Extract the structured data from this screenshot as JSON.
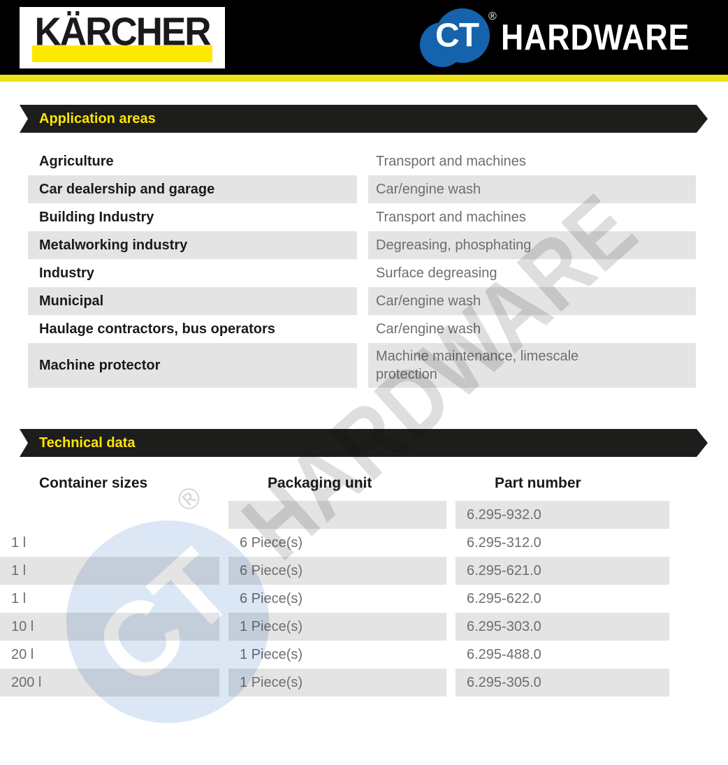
{
  "header": {
    "karcher_logo_text": "KÄRCHER",
    "ct_logo_text": "CT",
    "registered_mark": "®",
    "hardware_text": "HARDWARE"
  },
  "colors": {
    "karcher_yellow": "#ffe800",
    "accent_stripe_yellow": "#ede31a",
    "ribbon_background": "#1d1d1b",
    "ribbon_title_yellow": "#ffe500",
    "ct_blue": "#1463ac",
    "row_gray": "#e4e4e4",
    "secondary_text_gray": "#6e6e6e",
    "primary_text": "#1a1a1a",
    "header_black": "#000000"
  },
  "application_areas": {
    "title": "Application areas",
    "rows": [
      {
        "area": "Agriculture",
        "use": "Transport and machines"
      },
      {
        "area": "Car dealership and garage",
        "use": "Car/engine wash"
      },
      {
        "area": "Building Industry",
        "use": "Transport and machines"
      },
      {
        "area": "Metalworking industry",
        "use": "Degreasing, phosphating"
      },
      {
        "area": "Industry",
        "use": "Surface degreasing"
      },
      {
        "area": "Municipal",
        "use": "Car/engine wash"
      },
      {
        "area": "Haulage contractors, bus operators",
        "use": "Car/engine wash"
      },
      {
        "area": "Machine protector",
        "use": "Machine maintenance, limescale\nprotection"
      }
    ]
  },
  "technical_data": {
    "title": "Technical data",
    "columns": [
      "Container sizes",
      "Packaging unit",
      "Part number"
    ],
    "rows": [
      {
        "container_size": "",
        "packaging_unit": "",
        "part_number": "6.295-932.0"
      },
      {
        "container_size": "1 l",
        "packaging_unit": "6 Piece(s)",
        "part_number": "6.295-312.0"
      },
      {
        "container_size": "1 l",
        "packaging_unit": "6 Piece(s)",
        "part_number": "6.295-621.0"
      },
      {
        "container_size": "1 l",
        "packaging_unit": "6 Piece(s)",
        "part_number": "6.295-622.0"
      },
      {
        "container_size": "10 l",
        "packaging_unit": "1 Piece(s)",
        "part_number": "6.295-303.0"
      },
      {
        "container_size": "20 l",
        "packaging_unit": "1 Piece(s)",
        "part_number": "6.295-488.0"
      },
      {
        "container_size": "200 l",
        "packaging_unit": "1 Piece(s)",
        "part_number": "6.295-305.0"
      }
    ]
  },
  "watermark": {
    "ct": "CT",
    "registered": "®",
    "text": "HARDWARE"
  }
}
